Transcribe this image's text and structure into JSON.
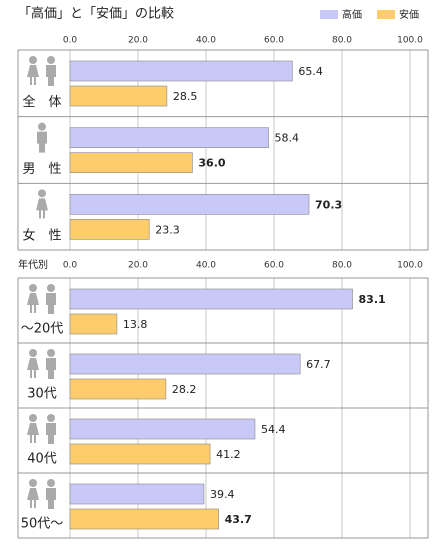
{
  "chart_data": [
    {
      "type": "bar",
      "orientation": "horizontal",
      "title": "「高価」と「安価」の比較",
      "categories": [
        "全　体",
        "男　性",
        "女　性"
      ],
      "series": [
        {
          "name": "高価",
          "color": "#c9c9f7",
          "values": [
            65.4,
            58.4,
            70.3
          ]
        },
        {
          "name": "安価",
          "color": "#fdcc6b",
          "values": [
            28.5,
            36.0,
            23.3
          ],
          "value_labels": [
            "28.5",
            "36.0",
            "23.3"
          ]
        }
      ],
      "xlim": [
        0,
        100
      ],
      "xticks": [
        {
          "value": 0,
          "label": "0.0"
        },
        {
          "value": 20,
          "label": "20.0"
        },
        {
          "value": 40,
          "label": "40.0"
        },
        {
          "value": 60,
          "label": "60.0"
        },
        {
          "value": 80,
          "label": "80.0"
        },
        {
          "value": 100,
          "label": "100.0"
        }
      ],
      "grid": true,
      "legend": "top-right",
      "highlight_color": "#e8141c"
    },
    {
      "type": "bar",
      "orientation": "horizontal",
      "title": "年代別",
      "categories": [
        "～20代",
        "30代",
        "40代",
        "50代～"
      ],
      "series": [
        {
          "name": "高価",
          "color": "#c9c9f7",
          "values": [
            83.1,
            67.7,
            54.4,
            39.4
          ]
        },
        {
          "name": "安価",
          "color": "#fdcc6b",
          "values": [
            13.8,
            28.2,
            41.2,
            43.7
          ]
        }
      ],
      "xlim": [
        0,
        100
      ],
      "xticks": [
        {
          "value": 0,
          "label": "0.0"
        },
        {
          "value": 20,
          "label": "20.0"
        },
        {
          "value": 40,
          "label": "40.0"
        },
        {
          "value": 60,
          "label": "60.0"
        },
        {
          "value": 80,
          "label": "80.0"
        },
        {
          "value": 100,
          "label": "100.0"
        }
      ],
      "grid": true,
      "highlight_color": "#e8141c"
    }
  ]
}
